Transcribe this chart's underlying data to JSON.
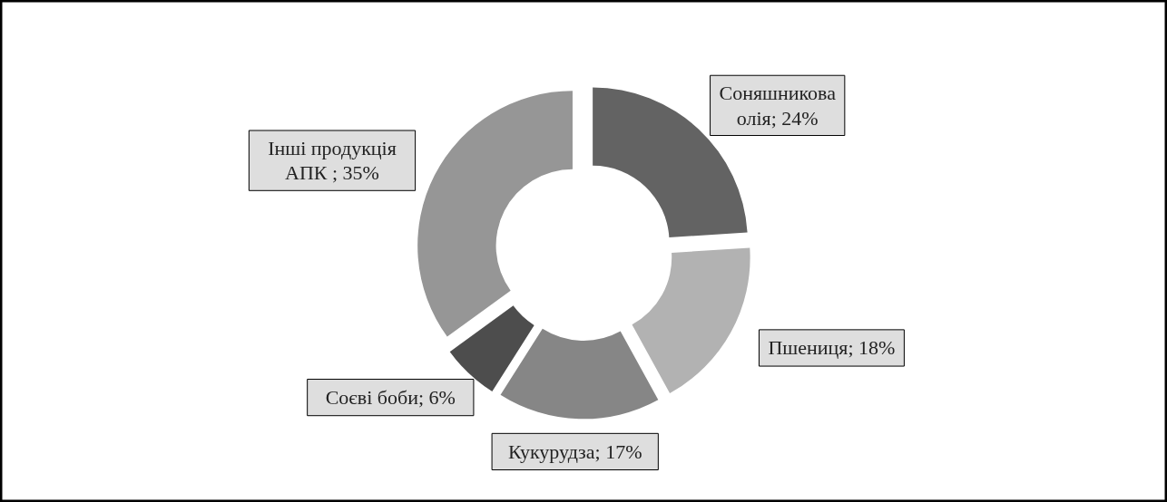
{
  "chart_data": {
    "type": "donut",
    "categories": [
      "Соняшникова олія",
      "Пшениця",
      "Кукурудза",
      "Соєві боби",
      "Інші продукція АПК "
    ],
    "values": [
      24,
      18,
      17,
      6,
      35
    ],
    "value_labels": [
      "; 24%",
      "; 18%",
      "; 17%",
      "; 6%",
      "; 35%"
    ],
    "colors": [
      "#636363",
      "#b2b2b2",
      "#868686",
      "#4d4d4d",
      "#969696"
    ]
  }
}
